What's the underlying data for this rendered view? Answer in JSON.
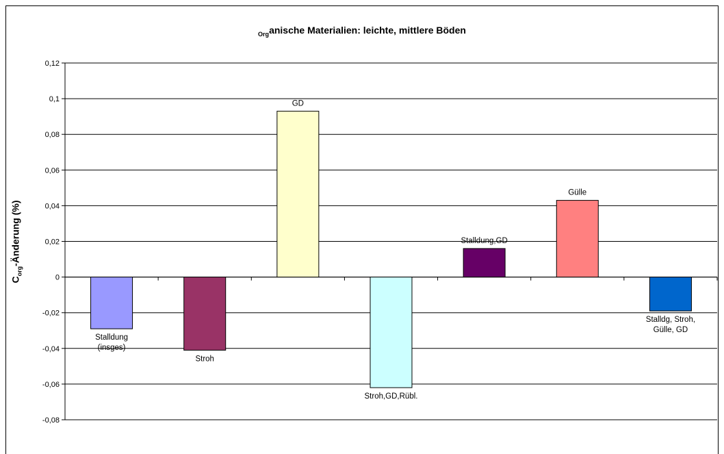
{
  "chart_data": {
    "type": "bar",
    "title": {
      "prefix": "Org",
      "main": "anische Materialien: leichte, mittlere Böden"
    },
    "ylabel": {
      "main": "C",
      "sub": "org",
      "rest": "-Änderung (%)"
    },
    "xlabel": "",
    "ylim": [
      -0.08,
      0.12
    ],
    "yticks": [
      "0,12",
      "0,1",
      "0,08",
      "0,06",
      "0,04",
      "0,02",
      "0",
      "-0,02",
      "-0,04",
      "-0,06",
      "-0,08"
    ],
    "ytick_values": [
      0.12,
      0.1,
      0.08,
      0.06,
      0.04,
      0.02,
      0,
      -0.02,
      -0.04,
      -0.06,
      -0.08
    ],
    "grid": true,
    "legend": "none",
    "categories": [
      "Stalldung (insges)",
      "Stroh",
      "GD",
      "Stroh,GD,Rübl.",
      "Stalldung,GD",
      "Gülle",
      "Stalldg, Stroh, Gülle, GD"
    ],
    "values": [
      -0.029,
      -0.041,
      0.093,
      -0.062,
      0.016,
      0.043,
      -0.019
    ],
    "data_labels": [
      [
        "Stalldung",
        "(insges)"
      ],
      [
        "Stroh"
      ],
      [
        "GD"
      ],
      [
        "Stroh,GD,Rübl."
      ],
      [
        "Stalldung,GD"
      ],
      [
        "Gülle"
      ],
      [
        "Stalldg, Stroh,",
        "Gülle, GD"
      ]
    ],
    "colors": [
      "#9999ff",
      "#993366",
      "#ffffcc",
      "#ccffff",
      "#660066",
      "#ff8080",
      "#0066cc"
    ]
  }
}
